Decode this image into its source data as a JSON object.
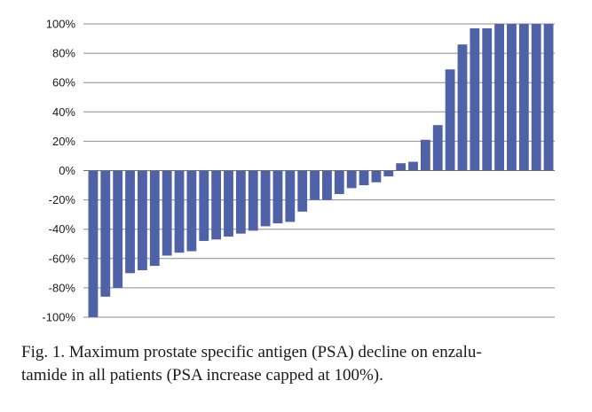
{
  "chart_data": {
    "type": "bar",
    "title": "",
    "xlabel": "",
    "ylabel": "",
    "ylim": [
      -100,
      100
    ],
    "y_tick_values": [
      100,
      80,
      60,
      40,
      20,
      0,
      -20,
      -40,
      -60,
      -80,
      -100
    ],
    "y_tick_labels": [
      "100%",
      "80%",
      "60%",
      "40%",
      "20%",
      "0%",
      "-20%",
      "-40%",
      "-60%",
      "-80%",
      "-100%"
    ],
    "grid": true,
    "bar_color": "#4f62a8",
    "values": [
      -100,
      -86,
      -80,
      -70,
      -68,
      -65,
      -58,
      -56,
      -55,
      -48,
      -47,
      -45,
      -43,
      -41,
      -38,
      -36,
      -35,
      -28,
      -20,
      -20,
      -16,
      -12,
      -10,
      -8,
      -4,
      5,
      6,
      21,
      31,
      69,
      86,
      97,
      97,
      100,
      100,
      100,
      100,
      100
    ]
  },
  "caption": {
    "text": "Fig. 1. Maximum prostate specific antigen (PSA) decline on enzalu-tamide in all patients (PSA increase capped at 100%)."
  },
  "caption_lines": [
    "Fig. 1. Maximum prostate specific antigen (PSA) decline on enzalu-",
    "tamide in all patients (PSA increase capped at 100%)."
  ]
}
